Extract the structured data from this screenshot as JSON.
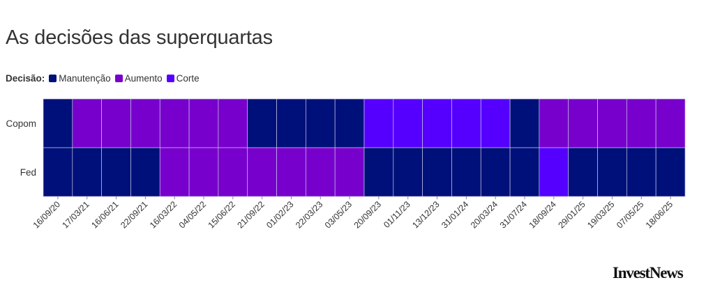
{
  "title": "As decisões das superquartas",
  "legend": {
    "label": "Decisão:",
    "entries": [
      {
        "key": "manutencao",
        "label": "Manutenção",
        "color": "#00107a"
      },
      {
        "key": "aumento",
        "label": "Aumento",
        "color": "#7700cc"
      },
      {
        "key": "corte",
        "label": "Corte",
        "color": "#5500ff"
      }
    ]
  },
  "brand": "InvestNews",
  "chart_data": {
    "type": "heatmap",
    "rows": [
      "Copom",
      "Fed"
    ],
    "columns": [
      "16/09/20",
      "17/03/21",
      "16/06/21",
      "22/09/21",
      "16/03/22",
      "04/05/22",
      "15/06/22",
      "21/09/22",
      "01/02/23",
      "22/03/23",
      "03/05/23",
      "20/09/23",
      "01/11/23",
      "13/12/23",
      "31/01/24",
      "20/03/24",
      "31/07/24",
      "18/09/24",
      "29/01/25",
      "19/03/25",
      "07/05/25",
      "18/06/25"
    ],
    "values": [
      [
        "manutencao",
        "aumento",
        "aumento",
        "aumento",
        "aumento",
        "aumento",
        "aumento",
        "manutencao",
        "manutencao",
        "manutencao",
        "manutencao",
        "corte",
        "corte",
        "corte",
        "corte",
        "corte",
        "manutencao",
        "aumento",
        "aumento",
        "aumento",
        "aumento",
        "aumento"
      ],
      [
        "manutencao",
        "manutencao",
        "manutencao",
        "manutencao",
        "aumento",
        "aumento",
        "aumento",
        "aumento",
        "aumento",
        "aumento",
        "aumento",
        "manutencao",
        "manutencao",
        "manutencao",
        "manutencao",
        "manutencao",
        "manutencao",
        "corte",
        "manutencao",
        "manutencao",
        "manutencao",
        "manutencao"
      ]
    ],
    "legend_position": "top-left",
    "grid": false
  }
}
